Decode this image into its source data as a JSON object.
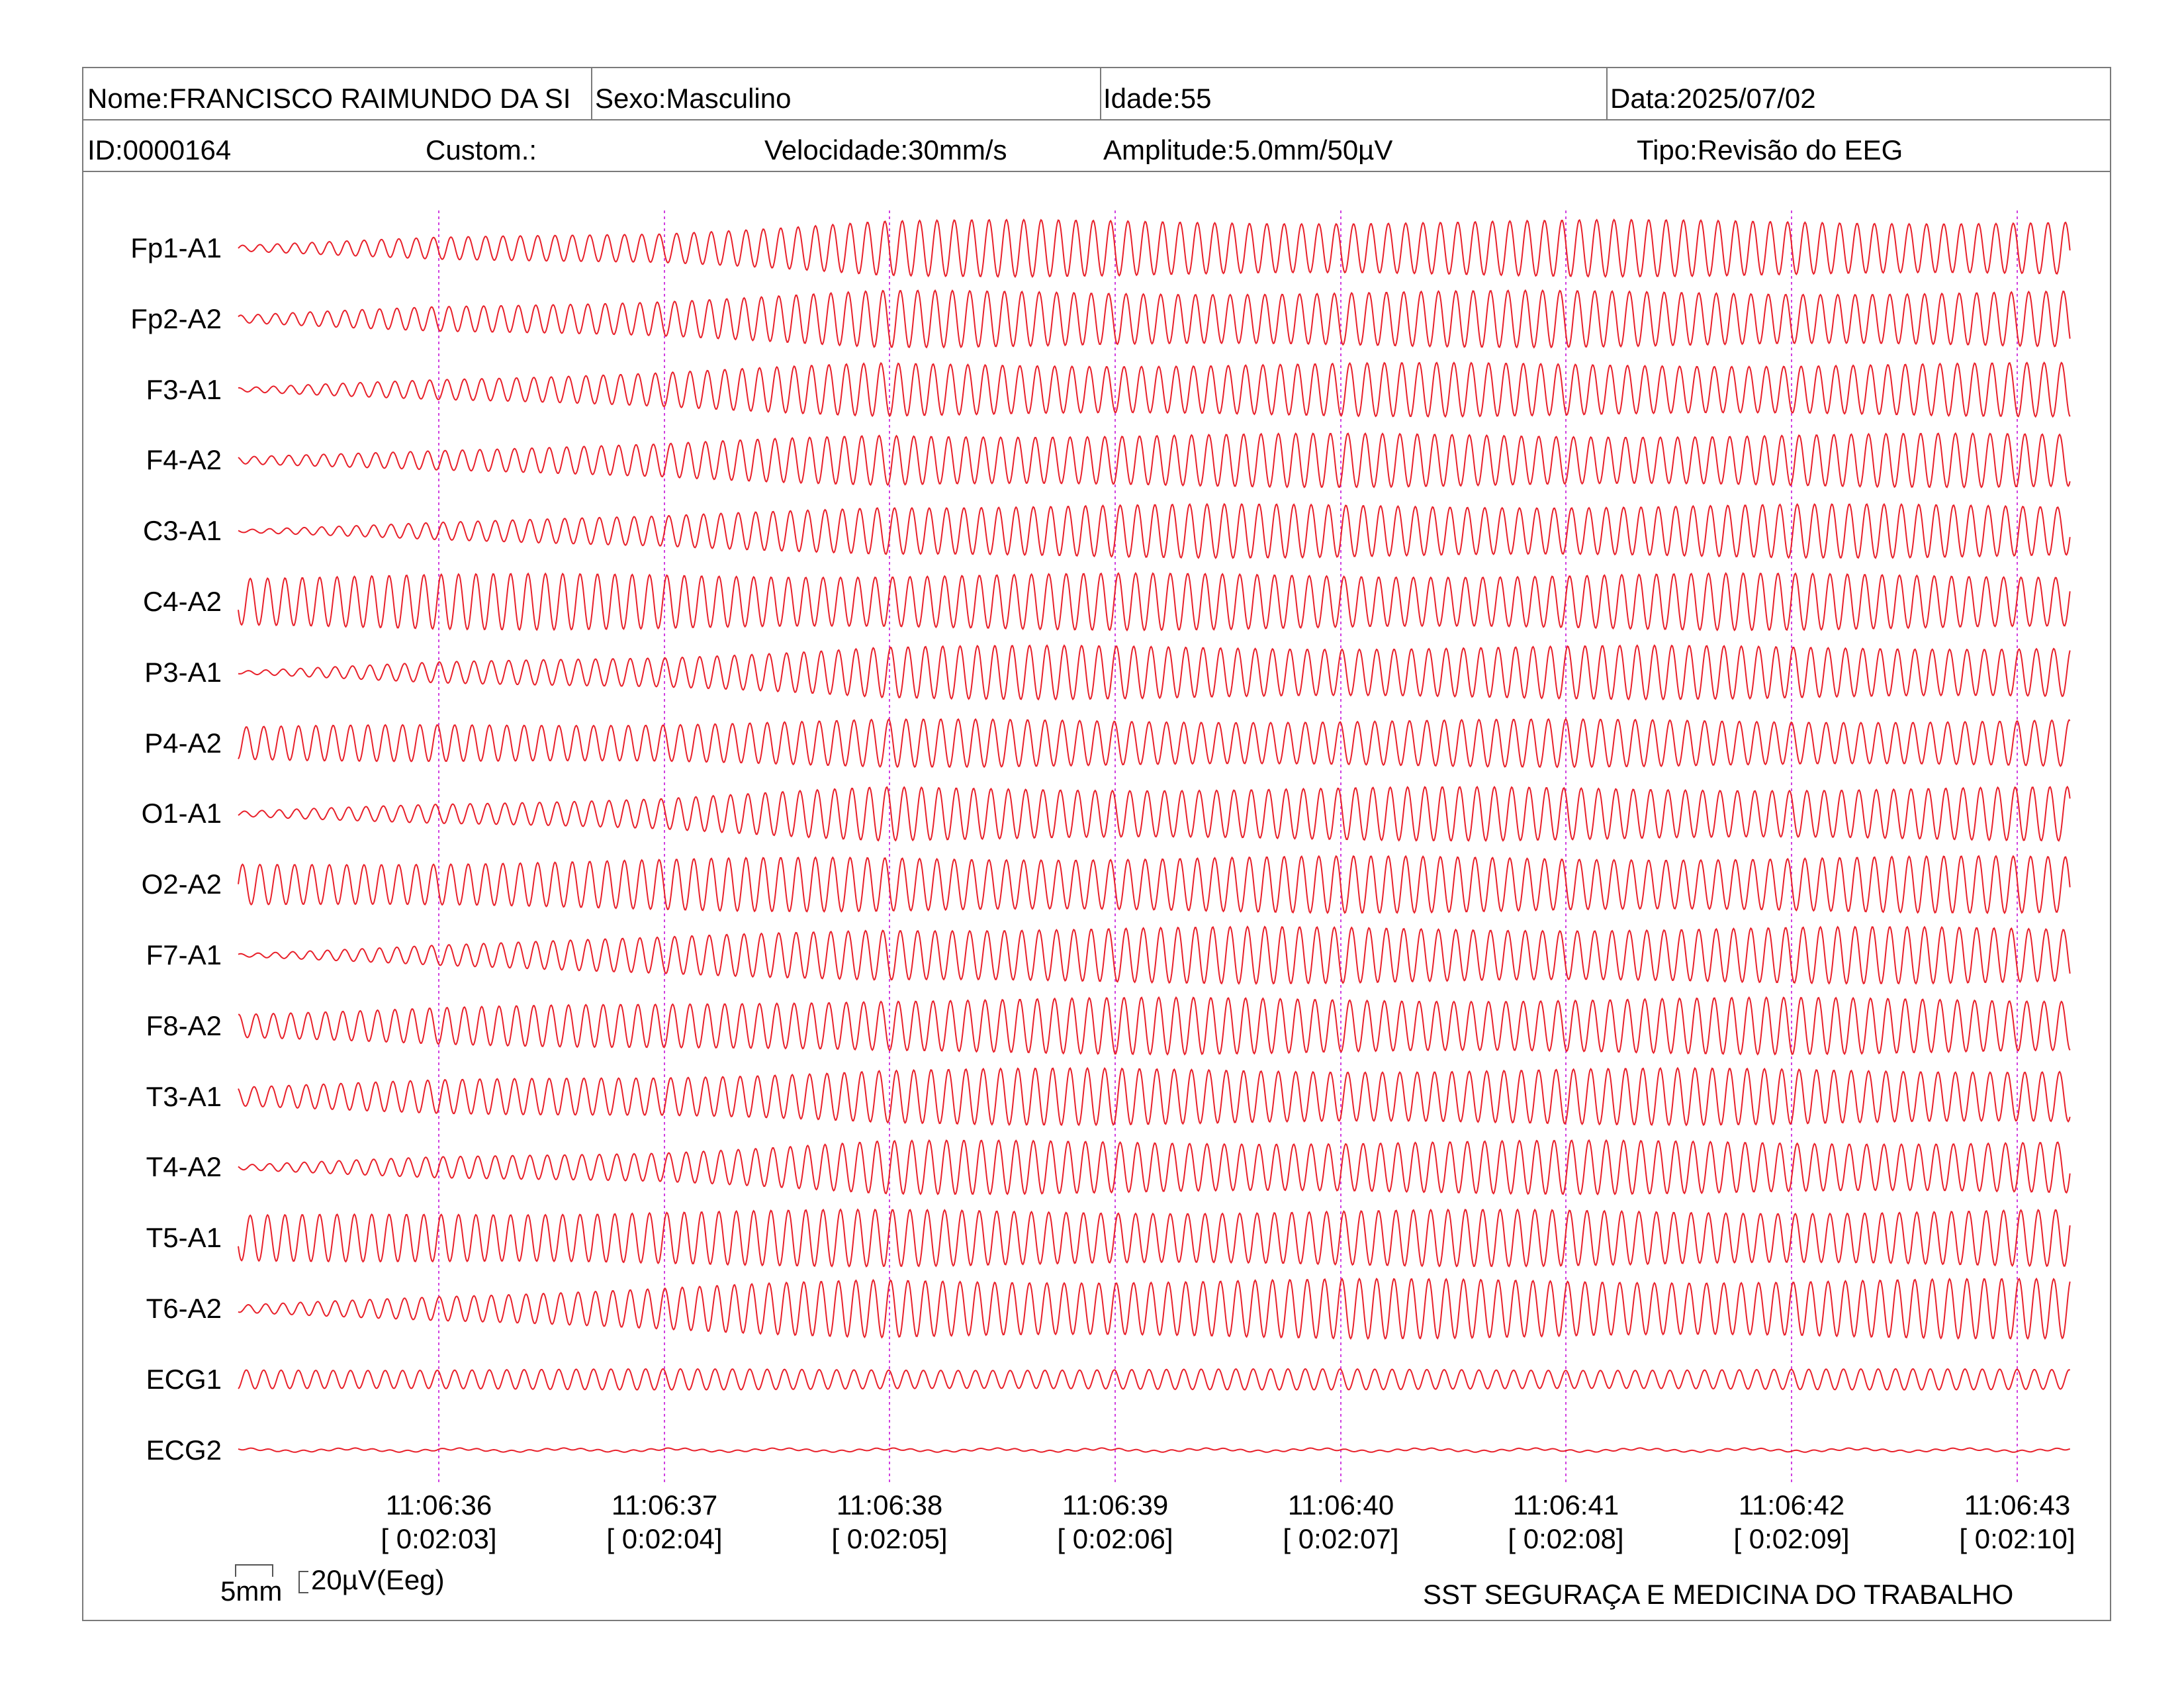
{
  "header": {
    "nome": "Nome:FRANCISCO RAIMUNDO DA SI",
    "sexo": "Sexo:Masculino",
    "idade": "Idade:55",
    "data": "Data:2025/07/02",
    "id": "ID:0000164",
    "custom": "Custom.:",
    "velocidade": "Velocidade:30mm/s",
    "amplitude": "Amplitude:5.0mm/50µV",
    "tipo": "Tipo:Revisão do EEG"
  },
  "footer": {
    "company": "SST SEGURAÇA E MEDICINA DO TRABALHO",
    "scale_time": "5mm",
    "scale_amp": "20µV(Eeg)"
  },
  "colors": {
    "trace": "#e8202a",
    "marker": "#d040e0",
    "border": "#7a7a7a"
  },
  "chart_data": {
    "type": "line",
    "channels": [
      "Fp1-A1",
      "Fp2-A2",
      "F3-A1",
      "F4-A2",
      "C3-A1",
      "C4-A2",
      "P3-A1",
      "P4-A2",
      "O1-A1",
      "O2-A2",
      "F7-A1",
      "F8-A2",
      "T3-A1",
      "T4-A2",
      "T5-A1",
      "T6-A2",
      "ECG1",
      "ECG2"
    ],
    "time_ticks": [
      {
        "clock": "11:06:36",
        "elapsed": "[ 0:02:03]"
      },
      {
        "clock": "11:06:37",
        "elapsed": "[ 0:02:04]"
      },
      {
        "clock": "11:06:38",
        "elapsed": "[ 0:02:05]"
      },
      {
        "clock": "11:06:39",
        "elapsed": "[ 0:02:06]"
      },
      {
        "clock": "11:06:40",
        "elapsed": "[ 0:02:07]"
      },
      {
        "clock": "11:06:41",
        "elapsed": "[ 0:02:08]"
      },
      {
        "clock": "11:06:42",
        "elapsed": "[ 0:02:09]"
      },
      {
        "clock": "11:06:43",
        "elapsed": "[ 0:02:10]"
      }
    ],
    "frequency_hz": 13,
    "amplitude_profile": [
      [
        0.1,
        0.55,
        0.95
      ],
      [
        0.12,
        0.65,
        0.95
      ],
      [
        0.06,
        0.6,
        0.9
      ],
      [
        0.12,
        0.55,
        0.9
      ],
      [
        0.05,
        0.5,
        0.9
      ],
      [
        0.9,
        0.95,
        0.95
      ],
      [
        0.05,
        0.55,
        0.9
      ],
      [
        0.55,
        0.7,
        0.8
      ],
      [
        0.08,
        0.55,
        0.9
      ],
      [
        0.7,
        0.85,
        0.95
      ],
      [
        0.05,
        0.6,
        0.95
      ],
      [
        0.45,
        0.75,
        0.95
      ],
      [
        0.35,
        0.7,
        0.95
      ],
      [
        0.08,
        0.55,
        0.9
      ],
      [
        0.75,
        0.95,
        0.95
      ],
      [
        0.12,
        0.7,
        1.0
      ],
      [
        0.35,
        0.35,
        0.35
      ],
      [
        0.07,
        0.07,
        0.07
      ]
    ]
  }
}
